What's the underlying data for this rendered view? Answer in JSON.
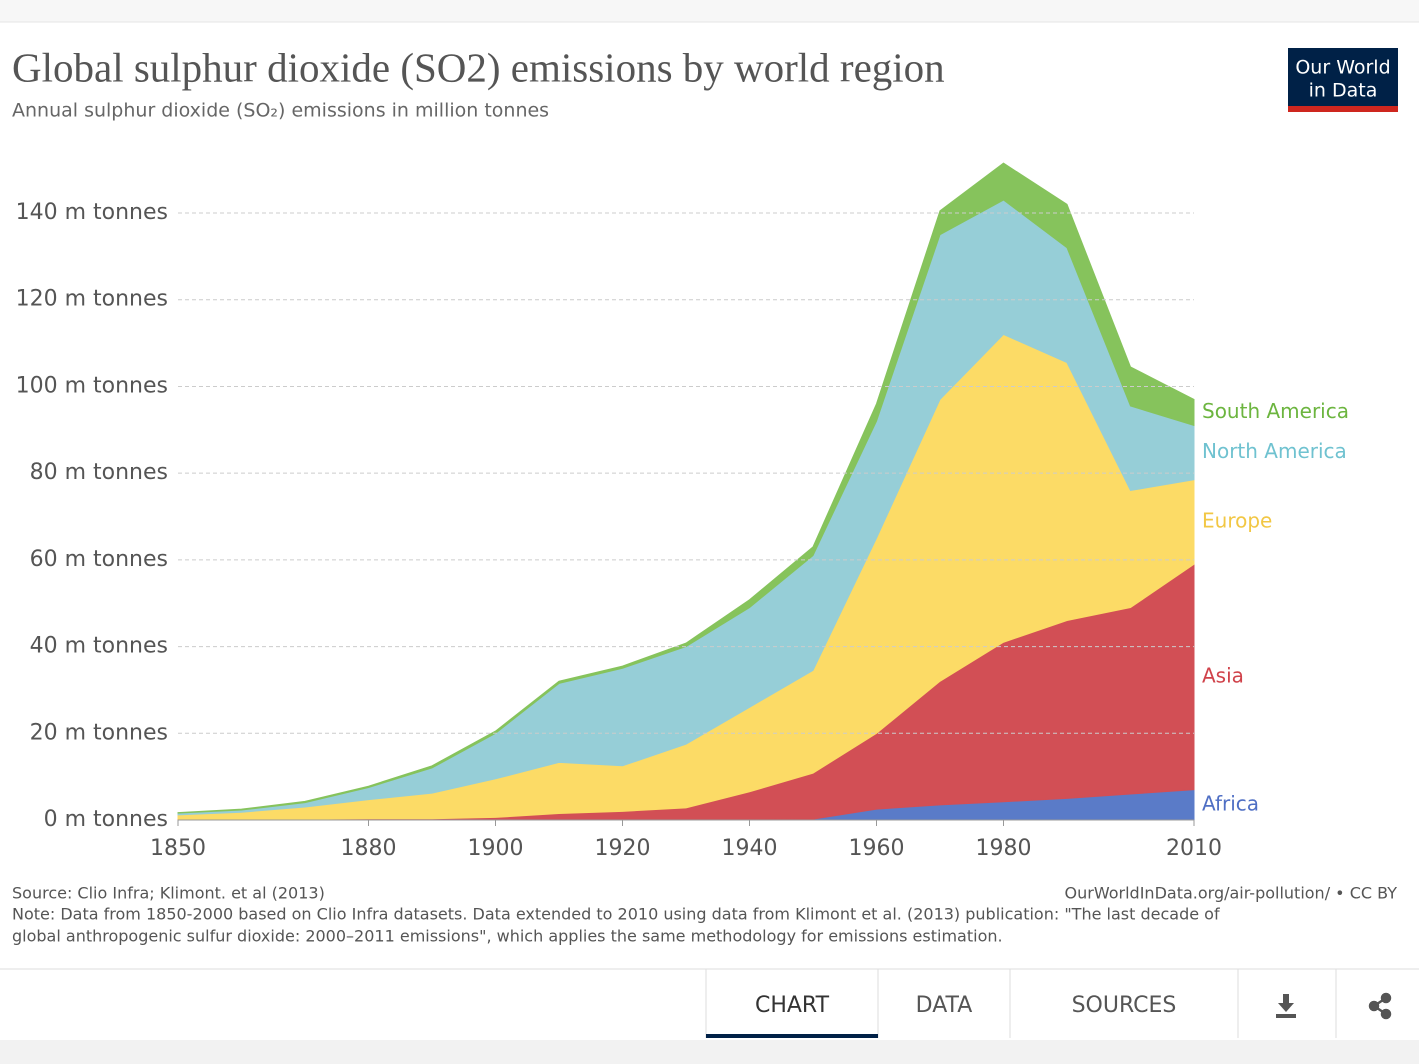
{
  "chart_data": {
    "type": "area",
    "title": "Global sulphur dioxide (SO2) emissions by world region",
    "subtitle": "Annual sulphur dioxide (SO₂) emissions in million tonnes",
    "x": [
      1850,
      1860,
      1870,
      1880,
      1890,
      1900,
      1910,
      1920,
      1930,
      1940,
      1950,
      1960,
      1970,
      1980,
      1990,
      2000,
      2010
    ],
    "series": [
      {
        "name": "Africa",
        "color": "#5a7bc8",
        "values": [
          0.1,
          0.1,
          0.1,
          0.1,
          0.1,
          0.1,
          0.1,
          0.1,
          0.1,
          0.1,
          0.2,
          2.5,
          3.5,
          4.2,
          5,
          6,
          7
        ]
      },
      {
        "name": "Asia",
        "color": "#d24f55",
        "values": [
          0.1,
          0.1,
          0.1,
          0.2,
          0.2,
          0.5,
          1.4,
          1.9,
          2.7,
          6.4,
          10.6,
          17.5,
          28.5,
          36.8,
          41,
          43,
          52
        ]
      },
      {
        "name": "Europe",
        "color": "#fcdb66",
        "values": [
          1,
          1.6,
          2.8,
          4.4,
          5.9,
          8.9,
          11.8,
          10.5,
          14.7,
          19.5,
          23.7,
          45,
          65,
          71,
          59.5,
          27,
          19.5
        ]
      },
      {
        "name": "North America",
        "color": "#96ced7",
        "values": [
          0.4,
          0.5,
          1,
          2.8,
          5.8,
          10.5,
          18.2,
          22.5,
          22.5,
          23,
          26.5,
          27,
          38,
          31,
          26.5,
          19.5,
          12.5
        ]
      },
      {
        "name": "South America",
        "color": "#86c35c",
        "values": [
          0.1,
          0.2,
          0.3,
          0.3,
          0.5,
          0.5,
          0.5,
          0.5,
          0.8,
          1.8,
          2,
          4,
          5.5,
          8.5,
          10,
          9,
          6
        ]
      }
    ],
    "label_colors": [
      "#4f6fc4",
      "#d0424a",
      "#f2c744",
      "#6fc2d0",
      "#6cb53f"
    ],
    "xlim": [
      1850,
      2010
    ],
    "xticks": [
      1850,
      1880,
      1900,
      1920,
      1940,
      1960,
      1980,
      2010
    ],
    "ylim": [
      0,
      152
    ],
    "yticks": [
      {
        "value": 0,
        "label": "0 m tonnes"
      },
      {
        "value": 20,
        "label": "20 m tonnes"
      },
      {
        "value": 40,
        "label": "40 m tonnes"
      },
      {
        "value": 60,
        "label": "60 m tonnes"
      },
      {
        "value": 80,
        "label": "80 m tonnes"
      },
      {
        "value": 100,
        "label": "100 m tonnes"
      },
      {
        "value": 120,
        "label": "120 m tonnes"
      },
      {
        "value": 140,
        "label": "140 m tonnes"
      }
    ],
    "grid": true,
    "stacked": true,
    "legend": "right"
  },
  "logo": [
    "Our World",
    "in Data"
  ],
  "source": "Source: Clio Infra; Klimont. et al (2013)",
  "url": "OurWorldInData.org/air-pollution/ • CC BY",
  "note": [
    "Note: Data from 1850-2000 based on Clio Infra datasets. Data extended to 2010 using data from Klimont et al. (2013) publication: \"The last decade of",
    "global anthropogenic sulfur dioxide: 2000–2011 emissions\", which applies the same methodology for emissions estimation."
  ],
  "tabs": [
    "CHART",
    "DATA",
    "SOURCES"
  ]
}
